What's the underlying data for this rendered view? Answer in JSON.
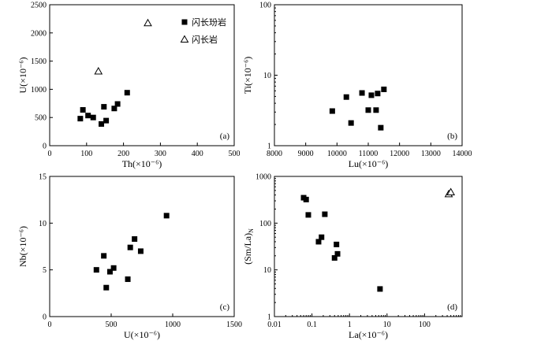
{
  "legend": {
    "entries": [
      {
        "marker": "filled-square",
        "label": "闪长玢岩"
      },
      {
        "marker": "open-triangle",
        "label": "闪长岩"
      }
    ]
  },
  "chart_data": [
    {
      "id": "a",
      "type": "scatter",
      "panel_label": "(a)",
      "xlabel": "Th(×10⁻⁶)",
      "ylabel": "U(×10⁻⁶)",
      "xscale": "linear",
      "yscale": "linear",
      "xlim": [
        0,
        500
      ],
      "ylim": [
        0,
        2500
      ],
      "xticks": [
        0,
        100,
        200,
        300,
        400,
        500
      ],
      "yticks": [
        0,
        500,
        1000,
        1500,
        2000,
        2500
      ],
      "xtick_labels": [
        "0",
        "100",
        "200",
        "300",
        "400",
        "500"
      ],
      "ytick_labels": [
        "0",
        "500",
        "1000",
        "1500",
        "2000",
        "2500"
      ],
      "legend_position": "top-right",
      "series": [
        {
          "name": "闪长玢岩",
          "marker": "filled-square",
          "x": [
            83,
            90,
            104,
            118,
            140,
            147,
            153,
            175,
            184,
            210
          ],
          "y": [
            480,
            635,
            535,
            500,
            385,
            690,
            445,
            660,
            740,
            940
          ]
        },
        {
          "name": "闪长岩",
          "marker": "open-triangle",
          "x": [
            132,
            266
          ],
          "y": [
            1320,
            2175
          ]
        }
      ]
    },
    {
      "id": "b",
      "type": "scatter",
      "panel_label": "(b)",
      "xlabel": "Lu(×10⁻⁶)",
      "ylabel": "Ti(×10⁻⁶)",
      "xscale": "linear",
      "yscale": "log",
      "xlim": [
        8000,
        14000
      ],
      "ylim": [
        1,
        100
      ],
      "xticks": [
        8000,
        9000,
        10000,
        11000,
        12000,
        13000,
        14000
      ],
      "yticks": [
        1,
        10,
        100
      ],
      "xtick_labels": [
        "8000",
        "9000",
        "10000",
        "11000",
        "12000",
        "13000",
        "14000"
      ],
      "ytick_labels": [
        "1",
        "10",
        "100"
      ],
      "series": [
        {
          "name": "闪长玢岩",
          "marker": "filled-square",
          "x": [
            9850,
            10300,
            10450,
            10800,
            11000,
            11100,
            11250,
            11300,
            11400,
            11500
          ],
          "y": [
            3.1,
            4.9,
            2.1,
            5.6,
            3.2,
            5.2,
            3.2,
            5.5,
            1.8,
            6.3
          ]
        }
      ]
    },
    {
      "id": "c",
      "type": "scatter",
      "panel_label": "(c)",
      "xlabel": "U(×10⁻⁶)",
      "ylabel": "Nb(×10⁻⁶)",
      "xscale": "linear",
      "yscale": "linear",
      "xlim": [
        0,
        1500
      ],
      "ylim": [
        0,
        15
      ],
      "xticks": [
        0,
        500,
        1000,
        1500
      ],
      "yticks": [
        0,
        5,
        10,
        15
      ],
      "xtick_labels": [
        "0",
        "500",
        "1000",
        "1500"
      ],
      "ytick_labels": [
        "0",
        "5",
        "10",
        "15"
      ],
      "series": [
        {
          "name": "闪长玢岩",
          "marker": "filled-square",
          "x": [
            380,
            440,
            460,
            490,
            520,
            635,
            655,
            690,
            740,
            950
          ],
          "y": [
            5.0,
            6.5,
            3.1,
            4.8,
            5.2,
            4.0,
            7.4,
            8.3,
            7.0,
            10.8
          ]
        }
      ]
    },
    {
      "id": "d",
      "type": "scatter",
      "panel_label": "(d)",
      "xlabel": "La(×10⁻⁶)",
      "ylabel": "(Sm/La)N",
      "xscale": "log",
      "yscale": "log",
      "xlim": [
        0.01,
        1000
      ],
      "ylim": [
        1,
        1000
      ],
      "xticks": [
        0.01,
        0.1,
        1,
        10,
        100
      ],
      "yticks": [
        1,
        10,
        100,
        1000
      ],
      "xtick_labels": [
        "0.01",
        "0.1",
        "1",
        "10",
        "100"
      ],
      "ytick_labels": [
        "1",
        "10",
        "100",
        "1000"
      ],
      "series": [
        {
          "name": "闪长玢岩",
          "marker": "filled-square",
          "x": [
            0.06,
            0.07,
            0.08,
            0.15,
            0.18,
            0.22,
            0.4,
            0.45,
            0.48,
            6.5
          ],
          "y": [
            350,
            320,
            150,
            40,
            50,
            155,
            18,
            35,
            22,
            3.9
          ]
        },
        {
          "name": "闪长岩",
          "marker": "open-triangle",
          "x": [
            440,
            500
          ],
          "y": [
            420,
            460
          ]
        }
      ]
    }
  ]
}
